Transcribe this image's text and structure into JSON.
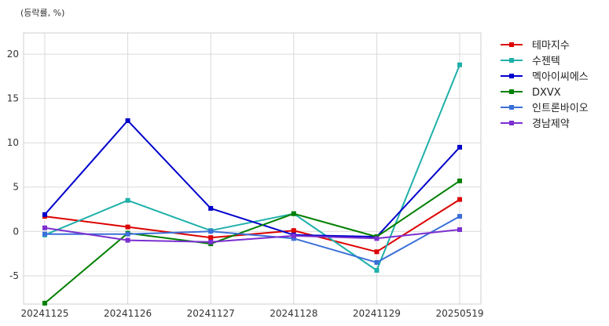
{
  "chart_data": {
    "type": "line",
    "ylabel": "(등락률, %)",
    "categories": [
      "20241125",
      "20241126",
      "20241127",
      "20241128",
      "20241129",
      "20250519"
    ],
    "y_ticks": [
      20,
      15,
      10,
      5,
      0,
      -5
    ],
    "y_tick_labels": [
      "20",
      "15",
      "10",
      "5",
      "0",
      "-5"
    ],
    "ylim": [
      -8.2,
      22.4
    ],
    "grid": true,
    "legend_position": "right-outside-top",
    "series": [
      {
        "name": "테마지수",
        "color": "#dd0000",
        "values": [
          1.7,
          0.5,
          -0.7,
          0.1,
          -2.3,
          3.6
        ]
      },
      {
        "name": "수젠텍",
        "color": "#1fb0aa",
        "values": [
          -0.4,
          3.5,
          0.1,
          2.0,
          -4.4,
          18.8
        ]
      },
      {
        "name": "멕아이씨에스",
        "color": "#0000cc",
        "values": [
          1.9,
          12.5,
          2.6,
          -0.4,
          -0.6,
          9.5
        ]
      },
      {
        "name": "DXVX",
        "color": "#008000",
        "values": [
          -8.1,
          -0.2,
          -1.4,
          2.0,
          -0.6,
          5.7
        ]
      },
      {
        "name": "인트론바이오",
        "color": "#3b6fd8",
        "values": [
          -0.3,
          -0.3,
          0.0,
          -0.8,
          -3.5,
          1.7
        ]
      },
      {
        "name": "경남제약",
        "color": "#7a2fd0",
        "values": [
          0.4,
          -1.0,
          -1.2,
          -0.5,
          -0.8,
          0.2
        ]
      }
    ]
  }
}
